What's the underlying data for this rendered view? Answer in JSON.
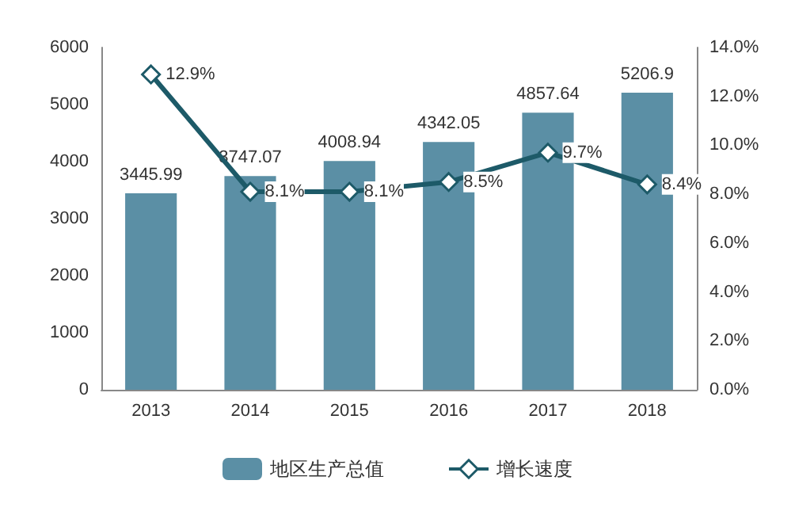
{
  "chart_data": {
    "type": "bar",
    "categories": [
      "2013",
      "2014",
      "2015",
      "2016",
      "2017",
      "2018"
    ],
    "series": [
      {
        "name": "地区生产总值",
        "color": "#5b8fa5",
        "values": [
          3445.99,
          3747.07,
          4008.94,
          4342.05,
          4857.64,
          5206.9
        ],
        "value_labels": [
          "3445.99",
          "3747.07",
          "4008.94",
          "4342.05",
          "4857.64",
          "5206.9"
        ]
      },
      {
        "name": "增长速度",
        "type": "line",
        "axis": "y2",
        "color": "#1d5a68",
        "marker": "diamond",
        "values": [
          12.9,
          8.1,
          8.1,
          8.5,
          9.7,
          8.4
        ],
        "value_labels": [
          "12.9%",
          "8.1%",
          "8.1%",
          "8.5%",
          "9.7%",
          "8.4%"
        ]
      }
    ],
    "ylim": [
      0,
      6000
    ],
    "yticks": [
      0,
      1000,
      2000,
      3000,
      4000,
      5000,
      6000
    ],
    "y2lim": [
      0,
      14
    ],
    "y2ticks": [
      {
        "value": 0,
        "label": "0.0%"
      },
      {
        "value": 2,
        "label": "2.0%"
      },
      {
        "value": 4,
        "label": "4.0%"
      },
      {
        "value": 6,
        "label": "6.0%"
      },
      {
        "value": 8,
        "label": "8.0%"
      },
      {
        "value": 10,
        "label": "10.0%"
      },
      {
        "value": 12,
        "label": "12.0%"
      },
      {
        "value": 14,
        "label": "14.0%"
      }
    ],
    "grid": false,
    "legend": "bottom"
  }
}
